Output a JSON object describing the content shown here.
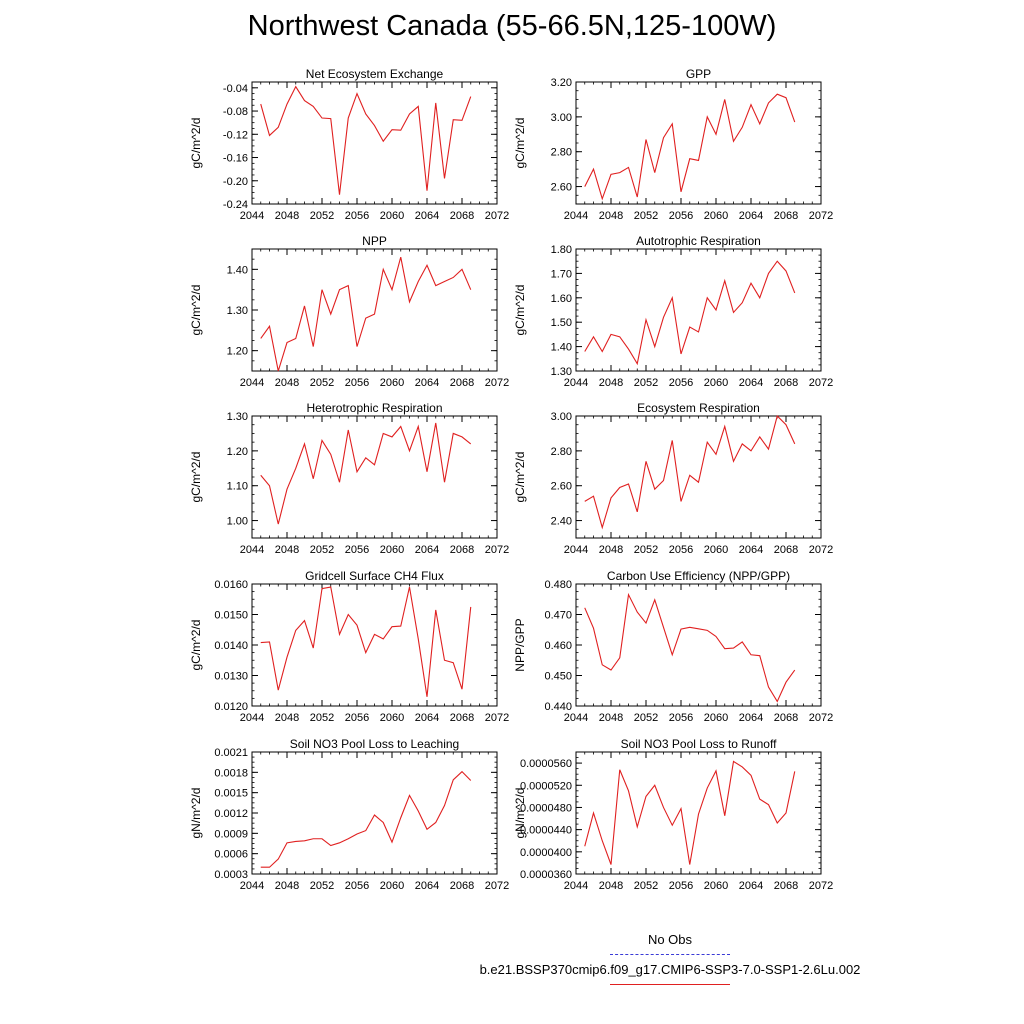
{
  "title": "Northwest Canada (55-66.5N,125-100W)",
  "legend": {
    "obs_label": "No Obs",
    "model_label": "b.e21.BSSP370cmip6.f09_g17.CMIP6-SSP3-7.0-SSP1-2.6Lu.002",
    "obs_color": "#3b3bd6",
    "model_color": "#e02020"
  },
  "chart_data": [
    {
      "type": "line",
      "title": "Net Ecosystem Exchange",
      "xlabel": "",
      "ylabel": "gC/m^2/d",
      "xlim": [
        2044,
        2072
      ],
      "ylim": [
        -0.24,
        -0.03
      ],
      "xticks": [
        2044,
        2048,
        2052,
        2056,
        2060,
        2064,
        2068,
        2072
      ],
      "xtick_labels": [
        "2044",
        "2048",
        "2052",
        "2056",
        "2060",
        "2064",
        "2068",
        "2072"
      ],
      "yticks": [
        -0.24,
        -0.2,
        -0.16,
        -0.12,
        -0.08,
        -0.04
      ],
      "ytick_labels": [
        "-0.24",
        "-0.20",
        "-0.16",
        "-0.12",
        "-0.08",
        "-0.04"
      ],
      "series": [
        {
          "color": "#e02020",
          "x": [
            2045,
            2046,
            2047,
            2048,
            2049,
            2050,
            2051,
            2052,
            2053,
            2054,
            2055,
            2056,
            2057,
            2058,
            2059,
            2060,
            2061,
            2062,
            2063,
            2064,
            2065,
            2066,
            2067,
            2068,
            2069
          ],
          "y": [
            -0.068,
            -0.122,
            -0.108,
            -0.068,
            -0.038,
            -0.062,
            -0.072,
            -0.092,
            -0.093,
            -0.224,
            -0.092,
            -0.05,
            -0.085,
            -0.105,
            -0.132,
            -0.112,
            -0.113,
            -0.085,
            -0.072,
            -0.217,
            -0.066,
            -0.196,
            -0.095,
            -0.096,
            -0.055
          ]
        }
      ]
    },
    {
      "type": "line",
      "title": "GPP",
      "xlabel": "",
      "ylabel": "gC/m^2/d",
      "xlim": [
        2044,
        2072
      ],
      "ylim": [
        2.5,
        3.2
      ],
      "xticks": [
        2044,
        2048,
        2052,
        2056,
        2060,
        2064,
        2068,
        2072
      ],
      "xtick_labels": [
        "2044",
        "2048",
        "2052",
        "2056",
        "2060",
        "2064",
        "2068",
        "2072"
      ],
      "yticks": [
        2.6,
        2.8,
        3.0,
        3.2
      ],
      "ytick_labels": [
        "2.60",
        "2.80",
        "3.00",
        "3.20"
      ],
      "series": [
        {
          "color": "#e02020",
          "x": [
            2045,
            2046,
            2047,
            2048,
            2049,
            2050,
            2051,
            2052,
            2053,
            2054,
            2055,
            2056,
            2057,
            2058,
            2059,
            2060,
            2061,
            2062,
            2063,
            2064,
            2065,
            2066,
            2067,
            2068,
            2069
          ],
          "y": [
            2.6,
            2.7,
            2.53,
            2.67,
            2.68,
            2.71,
            2.54,
            2.87,
            2.68,
            2.88,
            2.96,
            2.57,
            2.76,
            2.75,
            3.0,
            2.9,
            3.1,
            2.86,
            2.94,
            3.07,
            2.96,
            3.08,
            3.13,
            3.11,
            2.97
          ]
        }
      ]
    },
    {
      "type": "line",
      "title": "NPP",
      "xlabel": "",
      "ylabel": "gC/m^2/d",
      "xlim": [
        2044,
        2072
      ],
      "ylim": [
        1.15,
        1.45
      ],
      "xticks": [
        2044,
        2048,
        2052,
        2056,
        2060,
        2064,
        2068,
        2072
      ],
      "xtick_labels": [
        "2044",
        "2048",
        "2052",
        "2056",
        "2060",
        "2064",
        "2068",
        "2072"
      ],
      "yticks": [
        1.2,
        1.3,
        1.4
      ],
      "ytick_labels": [
        "1.20",
        "1.30",
        "1.40"
      ],
      "series": [
        {
          "color": "#e02020",
          "x": [
            2045,
            2046,
            2047,
            2048,
            2049,
            2050,
            2051,
            2052,
            2053,
            2054,
            2055,
            2056,
            2057,
            2058,
            2059,
            2060,
            2061,
            2062,
            2063,
            2064,
            2065,
            2066,
            2067,
            2068,
            2069
          ],
          "y": [
            1.23,
            1.26,
            1.15,
            1.22,
            1.23,
            1.31,
            1.21,
            1.35,
            1.29,
            1.35,
            1.36,
            1.21,
            1.28,
            1.29,
            1.4,
            1.35,
            1.43,
            1.32,
            1.37,
            1.41,
            1.36,
            1.37,
            1.38,
            1.4,
            1.35
          ]
        }
      ]
    },
    {
      "type": "line",
      "title": "Autotrophic Respiration",
      "xlabel": "",
      "ylabel": "gC/m^2/d",
      "xlim": [
        2044,
        2072
      ],
      "ylim": [
        1.3,
        1.8
      ],
      "xticks": [
        2044,
        2048,
        2052,
        2056,
        2060,
        2064,
        2068,
        2072
      ],
      "xtick_labels": [
        "2044",
        "2048",
        "2052",
        "2056",
        "2060",
        "2064",
        "2068",
        "2072"
      ],
      "yticks": [
        1.3,
        1.4,
        1.5,
        1.6,
        1.7,
        1.8
      ],
      "ytick_labels": [
        "1.30",
        "1.40",
        "1.50",
        "1.60",
        "1.70",
        "1.80"
      ],
      "series": [
        {
          "color": "#e02020",
          "x": [
            2045,
            2046,
            2047,
            2048,
            2049,
            2050,
            2051,
            2052,
            2053,
            2054,
            2055,
            2056,
            2057,
            2058,
            2059,
            2060,
            2061,
            2062,
            2063,
            2064,
            2065,
            2066,
            2067,
            2068,
            2069
          ],
          "y": [
            1.38,
            1.44,
            1.38,
            1.45,
            1.44,
            1.39,
            1.33,
            1.51,
            1.4,
            1.52,
            1.6,
            1.37,
            1.48,
            1.46,
            1.6,
            1.55,
            1.67,
            1.54,
            1.58,
            1.66,
            1.6,
            1.7,
            1.75,
            1.71,
            1.62
          ]
        }
      ]
    },
    {
      "type": "line",
      "title": "Heterotrophic Respiration",
      "xlabel": "",
      "ylabel": "gC/m^2/d",
      "xlim": [
        2044,
        2072
      ],
      "ylim": [
        0.95,
        1.3
      ],
      "xticks": [
        2044,
        2048,
        2052,
        2056,
        2060,
        2064,
        2068,
        2072
      ],
      "xtick_labels": [
        "2044",
        "2048",
        "2052",
        "2056",
        "2060",
        "2064",
        "2068",
        "2072"
      ],
      "yticks": [
        1.0,
        1.1,
        1.2,
        1.3
      ],
      "ytick_labels": [
        "1.00",
        "1.10",
        "1.20",
        "1.30"
      ],
      "series": [
        {
          "color": "#e02020",
          "x": [
            2045,
            2046,
            2047,
            2048,
            2049,
            2050,
            2051,
            2052,
            2053,
            2054,
            2055,
            2056,
            2057,
            2058,
            2059,
            2060,
            2061,
            2062,
            2063,
            2064,
            2065,
            2066,
            2067,
            2068,
            2069
          ],
          "y": [
            1.13,
            1.1,
            0.99,
            1.09,
            1.15,
            1.22,
            1.12,
            1.23,
            1.19,
            1.11,
            1.26,
            1.14,
            1.18,
            1.16,
            1.25,
            1.24,
            1.27,
            1.2,
            1.27,
            1.14,
            1.28,
            1.11,
            1.25,
            1.24,
            1.22
          ]
        }
      ]
    },
    {
      "type": "line",
      "title": "Ecosystem Respiration",
      "xlabel": "",
      "ylabel": "gC/m^2/d",
      "xlim": [
        2044,
        2072
      ],
      "ylim": [
        2.3,
        3.0
      ],
      "xticks": [
        2044,
        2048,
        2052,
        2056,
        2060,
        2064,
        2068,
        2072
      ],
      "xtick_labels": [
        "2044",
        "2048",
        "2052",
        "2056",
        "2060",
        "2064",
        "2068",
        "2072"
      ],
      "yticks": [
        2.4,
        2.6,
        2.8,
        3.0
      ],
      "ytick_labels": [
        "2.40",
        "2.60",
        "2.80",
        "3.00"
      ],
      "series": [
        {
          "color": "#e02020",
          "x": [
            2045,
            2046,
            2047,
            2048,
            2049,
            2050,
            2051,
            2052,
            2053,
            2054,
            2055,
            2056,
            2057,
            2058,
            2059,
            2060,
            2061,
            2062,
            2063,
            2064,
            2065,
            2066,
            2067,
            2068,
            2069
          ],
          "y": [
            2.51,
            2.54,
            2.36,
            2.53,
            2.59,
            2.61,
            2.45,
            2.74,
            2.58,
            2.63,
            2.86,
            2.51,
            2.66,
            2.62,
            2.85,
            2.78,
            2.94,
            2.74,
            2.84,
            2.8,
            2.88,
            2.81,
            3.0,
            2.95,
            2.84
          ]
        }
      ]
    },
    {
      "type": "line",
      "title": "Gridcell Surface CH4 Flux",
      "xlabel": "",
      "ylabel": "gC/m^2/d",
      "xlim": [
        2044,
        2072
      ],
      "ylim": [
        0.012,
        0.016
      ],
      "xticks": [
        2044,
        2048,
        2052,
        2056,
        2060,
        2064,
        2068,
        2072
      ],
      "xtick_labels": [
        "2044",
        "2048",
        "2052",
        "2056",
        "2060",
        "2064",
        "2068",
        "2072"
      ],
      "yticks": [
        0.012,
        0.013,
        0.014,
        0.015,
        0.016
      ],
      "ytick_labels": [
        "0.0120",
        "0.0130",
        "0.0140",
        "0.0150",
        "0.0160"
      ],
      "series": [
        {
          "color": "#e02020",
          "x": [
            2045,
            2046,
            2047,
            2048,
            2049,
            2050,
            2051,
            2052,
            2053,
            2054,
            2055,
            2056,
            2057,
            2058,
            2059,
            2060,
            2061,
            2062,
            2063,
            2064,
            2065,
            2066,
            2067,
            2068,
            2069
          ],
          "y": [
            0.01408,
            0.0141,
            0.01252,
            0.0136,
            0.01448,
            0.0148,
            0.0139,
            0.01585,
            0.0159,
            0.01435,
            0.015,
            0.01465,
            0.01375,
            0.01435,
            0.0142,
            0.0146,
            0.01462,
            0.0159,
            0.0142,
            0.0123,
            0.01515,
            0.0135,
            0.01342,
            0.01255,
            0.01525
          ]
        }
      ]
    },
    {
      "type": "line",
      "title": "Carbon Use Efficiency (NPP/GPP)",
      "xlabel": "",
      "ylabel": "NPP/GPP",
      "xlim": [
        2044,
        2072
      ],
      "ylim": [
        0.44,
        0.48
      ],
      "xticks": [
        2044,
        2048,
        2052,
        2056,
        2060,
        2064,
        2068,
        2072
      ],
      "xtick_labels": [
        "2044",
        "2048",
        "2052",
        "2056",
        "2060",
        "2064",
        "2068",
        "2072"
      ],
      "yticks": [
        0.44,
        0.45,
        0.46,
        0.47,
        0.48
      ],
      "ytick_labels": [
        "0.440",
        "0.450",
        "0.460",
        "0.470",
        "0.480"
      ],
      "series": [
        {
          "color": "#e02020",
          "x": [
            2045,
            2046,
            2047,
            2048,
            2049,
            2050,
            2051,
            2052,
            2053,
            2054,
            2055,
            2056,
            2057,
            2058,
            2059,
            2060,
            2061,
            2062,
            2063,
            2064,
            2065,
            2066,
            2067,
            2068,
            2069
          ],
          "y": [
            0.4722,
            0.4655,
            0.4535,
            0.4518,
            0.4558,
            0.4765,
            0.4708,
            0.4672,
            0.4748,
            0.4658,
            0.4568,
            0.4652,
            0.4658,
            0.4653,
            0.4648,
            0.4628,
            0.4588,
            0.459,
            0.461,
            0.4568,
            0.4565,
            0.4462,
            0.4415,
            0.4478,
            0.4518
          ]
        }
      ]
    },
    {
      "type": "line",
      "title": "Soil NO3 Pool Loss to Leaching",
      "xlabel": "",
      "ylabel": "gN/m^2/d",
      "xlim": [
        2044,
        2072
      ],
      "ylim": [
        0.0003,
        0.0021
      ],
      "xticks": [
        2044,
        2048,
        2052,
        2056,
        2060,
        2064,
        2068,
        2072
      ],
      "xtick_labels": [
        "2044",
        "2048",
        "2052",
        "2056",
        "2060",
        "2064",
        "2068",
        "2072"
      ],
      "yticks": [
        0.0003,
        0.0006,
        0.0009,
        0.0012,
        0.0015,
        0.0018,
        0.0021
      ],
      "ytick_labels": [
        "0.0003",
        "0.0006",
        "0.0009",
        "0.0012",
        "0.0015",
        "0.0018",
        "0.0021"
      ],
      "series": [
        {
          "color": "#e02020",
          "x": [
            2045,
            2046,
            2047,
            2048,
            2049,
            2050,
            2051,
            2052,
            2053,
            2054,
            2055,
            2056,
            2057,
            2058,
            2059,
            2060,
            2061,
            2062,
            2063,
            2064,
            2065,
            2066,
            2067,
            2068,
            2069
          ],
          "y": [
            0.0004,
            0.0004,
            0.00052,
            0.00076,
            0.00078,
            0.00079,
            0.00082,
            0.00082,
            0.00072,
            0.00076,
            0.00082,
            0.00089,
            0.00094,
            0.00117,
            0.00106,
            0.00077,
            0.00113,
            0.00146,
            0.00123,
            0.00096,
            0.00106,
            0.00131,
            0.00169,
            0.00181,
            0.00168
          ]
        }
      ]
    },
    {
      "type": "line",
      "title": "Soil NO3 Pool Loss to Runoff",
      "xlabel": "",
      "ylabel": "gN/m^2/d",
      "xlim": [
        2044,
        2072
      ],
      "ylim": [
        3.6e-05,
        5.8e-05
      ],
      "xticks": [
        2044,
        2048,
        2052,
        2056,
        2060,
        2064,
        2068,
        2072
      ],
      "xtick_labels": [
        "2044",
        "2048",
        "2052",
        "2056",
        "2060",
        "2064",
        "2068",
        "2072"
      ],
      "yticks": [
        3.6e-05,
        4e-05,
        4.4e-05,
        4.8e-05,
        5.2e-05,
        5.6e-05
      ],
      "ytick_labels": [
        "0.0000360",
        "0.0000400",
        "0.0000440",
        "0.0000480",
        "0.0000520",
        "0.0000560"
      ],
      "series": [
        {
          "color": "#e02020",
          "x": [
            2045,
            2046,
            2047,
            2048,
            2049,
            2050,
            2051,
            2052,
            2053,
            2054,
            2055,
            2056,
            2057,
            2058,
            2059,
            2060,
            2061,
            2062,
            2063,
            2064,
            2065,
            2066,
            2067,
            2068,
            2069
          ],
          "y": [
            4.1e-05,
            4.7e-05,
            4.2e-05,
            3.77e-05,
            5.48e-05,
            5.1e-05,
            4.45e-05,
            5e-05,
            5.2e-05,
            4.8e-05,
            4.48e-05,
            4.78e-05,
            3.77e-05,
            4.68e-05,
            5.15e-05,
            5.46e-05,
            4.65e-05,
            5.63e-05,
            5.53e-05,
            5.38e-05,
            4.95e-05,
            4.85e-05,
            4.52e-05,
            4.7e-05,
            5.45e-05
          ]
        }
      ]
    }
  ]
}
